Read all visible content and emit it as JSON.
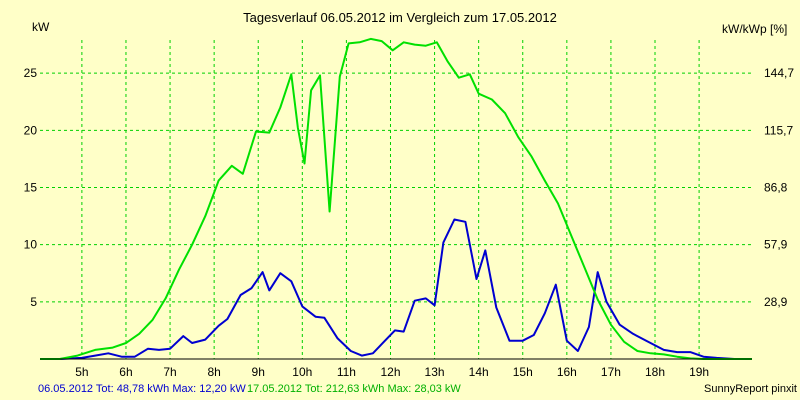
{
  "chart_data": {
    "type": "line",
    "title": "Tagesverlauf 06.05.2012 im Vergleich zum 17.05.2012",
    "ylabel": "kW",
    "y2label": "kW/kWp [%]",
    "x_unit_suffix": "h",
    "xlim": [
      4.05,
      20.2
    ],
    "ylim": [
      0,
      27.9
    ],
    "x_ticks": [
      5,
      6,
      7,
      8,
      9,
      10,
      11,
      12,
      13,
      14,
      15,
      16,
      17,
      18,
      19
    ],
    "y_ticks": [
      5,
      10,
      15,
      20,
      25
    ],
    "y2_ticks": [
      {
        "value": 5,
        "label": "28,9"
      },
      {
        "value": 10,
        "label": "57,9"
      },
      {
        "value": 15,
        "label": "86,8"
      },
      {
        "value": 20,
        "label": "115,7"
      },
      {
        "value": 25,
        "label": "144,7"
      }
    ],
    "grid": true,
    "series": [
      {
        "label": "06.05.2012",
        "color": "#0000d0",
        "x": [
          4.05,
          4.5,
          5.0,
          5.3,
          5.6,
          5.9,
          6.2,
          6.5,
          6.75,
          7.0,
          7.3,
          7.5,
          7.8,
          8.1,
          8.3,
          8.6,
          8.85,
          9.1,
          9.25,
          9.5,
          9.75,
          10.0,
          10.3,
          10.5,
          10.8,
          11.1,
          11.35,
          11.6,
          11.85,
          12.1,
          12.3,
          12.55,
          12.8,
          13.0,
          13.2,
          13.45,
          13.7,
          13.95,
          14.15,
          14.4,
          14.7,
          15.0,
          15.25,
          15.5,
          15.75,
          16.0,
          16.25,
          16.5,
          16.7,
          16.9,
          17.2,
          17.5,
          17.8,
          18.2,
          18.5,
          18.8,
          19.1,
          19.4,
          19.8,
          20.2
        ],
        "values": [
          0,
          0,
          0.1,
          0.3,
          0.5,
          0.2,
          0.2,
          0.9,
          0.8,
          0.9,
          2.0,
          1.4,
          1.7,
          2.9,
          3.5,
          5.6,
          6.2,
          7.6,
          6.0,
          7.5,
          6.8,
          4.6,
          3.7,
          3.6,
          1.8,
          0.7,
          0.3,
          0.5,
          1.5,
          2.5,
          2.4,
          5.1,
          5.3,
          4.7,
          10.2,
          12.2,
          12.0,
          7.0,
          9.5,
          4.5,
          1.6,
          1.6,
          2.1,
          4.0,
          6.5,
          1.6,
          0.7,
          2.8,
          7.6,
          5.0,
          3.0,
          2.2,
          1.6,
          0.8,
          0.6,
          0.6,
          0.2,
          0.1,
          0,
          0
        ]
      },
      {
        "label": "17.05.2012",
        "color": "#00e000",
        "x": [
          4.05,
          4.5,
          4.9,
          5.3,
          5.7,
          6.0,
          6.3,
          6.6,
          6.9,
          7.2,
          7.5,
          7.8,
          8.1,
          8.4,
          8.65,
          8.95,
          9.25,
          9.5,
          9.75,
          9.9,
          10.05,
          10.2,
          10.4,
          10.62,
          10.85,
          11.05,
          11.3,
          11.55,
          11.8,
          12.05,
          12.3,
          12.55,
          12.8,
          13.05,
          13.3,
          13.55,
          13.8,
          14.0,
          14.3,
          14.6,
          14.9,
          15.2,
          15.5,
          15.8,
          16.1,
          16.4,
          16.7,
          17.0,
          17.3,
          17.6,
          17.9,
          18.2,
          18.5,
          18.8,
          19.1,
          19.4,
          19.8,
          20.2
        ],
        "values": [
          0,
          0,
          0.3,
          0.8,
          1.0,
          1.4,
          2.2,
          3.4,
          5.3,
          7.8,
          10.0,
          12.5,
          15.6,
          16.9,
          16.2,
          19.9,
          19.8,
          22.0,
          24.9,
          20.2,
          17.1,
          23.5,
          24.8,
          12.9,
          24.7,
          27.6,
          27.7,
          28.0,
          27.8,
          27.0,
          27.7,
          27.5,
          27.4,
          27.7,
          26.0,
          24.6,
          24.9,
          23.2,
          22.7,
          21.5,
          19.4,
          17.7,
          15.6,
          13.6,
          10.8,
          8.0,
          5.2,
          3.0,
          1.5,
          0.7,
          0.5,
          0.4,
          0.2,
          0.05,
          0,
          0,
          0,
          0
        ]
      }
    ]
  },
  "footer": {
    "series1_text": "06.05.2012 Tot: 48,78 kWh Max: 12,20 kW",
    "series2_text": "17.05.2012 Tot: 212,63 kWh Max: 28,03 kW",
    "brand": "SunnyReport pinxit"
  }
}
